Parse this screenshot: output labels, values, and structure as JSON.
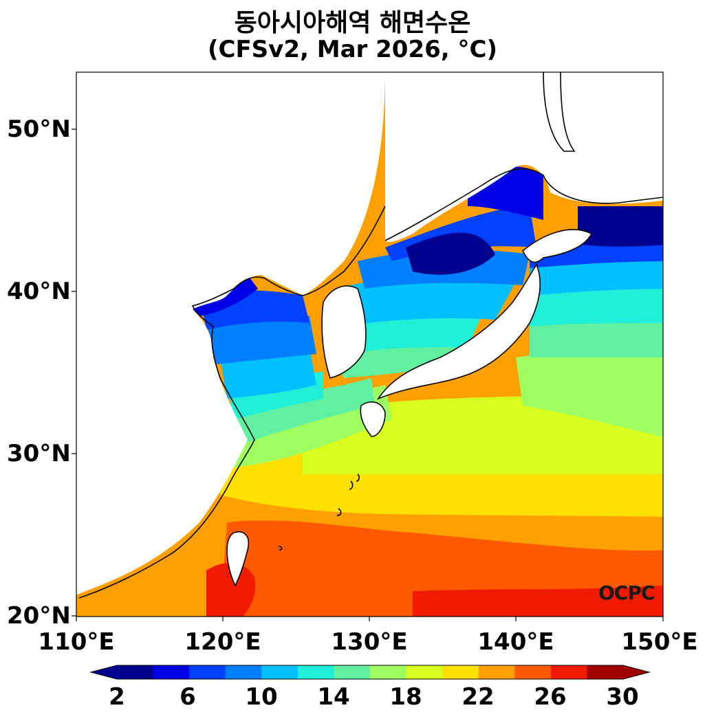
{
  "title": {
    "line1": "동아시아해역 해면수온",
    "line2": "(CFSv2, Mar 2026, °C)"
  },
  "axes": {
    "lat_labels": [
      "50°N",
      "40°N",
      "30°N",
      "20°N"
    ],
    "lon_labels": [
      "110°E",
      "120°E",
      "130°E",
      "140°E",
      "150°E"
    ]
  },
  "colorbar": {
    "tick_labels": [
      "2",
      "6",
      "10",
      "14",
      "18",
      "22",
      "26",
      "30"
    ],
    "levels": [
      2,
      4,
      6,
      8,
      10,
      12,
      14,
      16,
      18,
      20,
      22,
      24,
      26,
      28,
      30
    ],
    "colors": [
      "#00008f",
      "#0000e6",
      "#0040ff",
      "#0080ff",
      "#00c0ff",
      "#20f0d8",
      "#60f0a0",
      "#a0ff60",
      "#d8ff20",
      "#ffe000",
      "#ffa000",
      "#ff5a00",
      "#f01a00",
      "#a00000"
    ],
    "under_color": "#00008f",
    "over_color": "#a00000"
  },
  "watermark": "OCPC",
  "colors": {
    "land": "#ffffff",
    "coastline": "#000000"
  }
}
